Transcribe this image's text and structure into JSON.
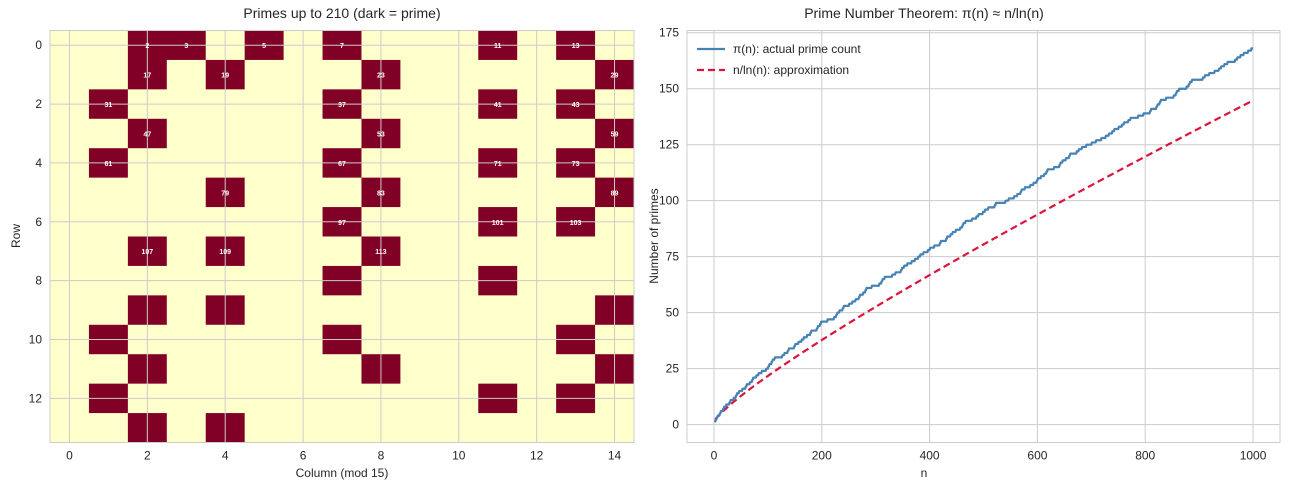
{
  "chart_data": [
    {
      "type": "heatmap",
      "title": "Primes up to 210 (dark = prime)",
      "xlabel": "Column (mod 15)",
      "ylabel": "Row",
      "n_max": 210,
      "columns": 15,
      "rows": 14,
      "cell_value_formula": "n = row*15 + col",
      "xticks": [
        0,
        2,
        4,
        6,
        8,
        10,
        12,
        14
      ],
      "yticks": [
        0,
        2,
        4,
        6,
        8,
        10,
        12
      ],
      "label_primes_below": 120,
      "primes": [
        2,
        3,
        5,
        7,
        11,
        13,
        17,
        19,
        23,
        29,
        31,
        37,
        41,
        43,
        47,
        53,
        59,
        61,
        67,
        71,
        73,
        79,
        83,
        89,
        97,
        101,
        103,
        107,
        109,
        113,
        127,
        131,
        137,
        139,
        149,
        151,
        157,
        163,
        167,
        173,
        179,
        181,
        191,
        193,
        197,
        199
      ],
      "colors": {
        "prime": "#800026",
        "non_prime": "#ffffcc",
        "label": "#ffffff",
        "grid": "#cccccc"
      },
      "grid": true
    },
    {
      "type": "line",
      "title": "Prime Number Theorem: π(n) ≈ n/ln(n)",
      "xlabel": "n",
      "ylabel": "Number of primes",
      "xlim": [
        -50,
        1050
      ],
      "ylim": [
        -8,
        176
      ],
      "xticks": [
        0,
        200,
        400,
        600,
        800,
        1000
      ],
      "yticks": [
        0,
        25,
        50,
        75,
        100,
        125,
        150,
        175
      ],
      "x_range": [
        2,
        1000
      ],
      "series": [
        {
          "name": "π(n): actual prime count",
          "color": "#4682b4",
          "style": "solid",
          "end_value": 168,
          "definition": "count of primes ≤ n"
        },
        {
          "name": "n/ln(n): approximation",
          "color": "#dc143c",
          "style": "dashed",
          "end_value": 144.8,
          "definition": "n / ln(n)"
        }
      ],
      "legend_position": "upper left",
      "grid": true
    }
  ]
}
